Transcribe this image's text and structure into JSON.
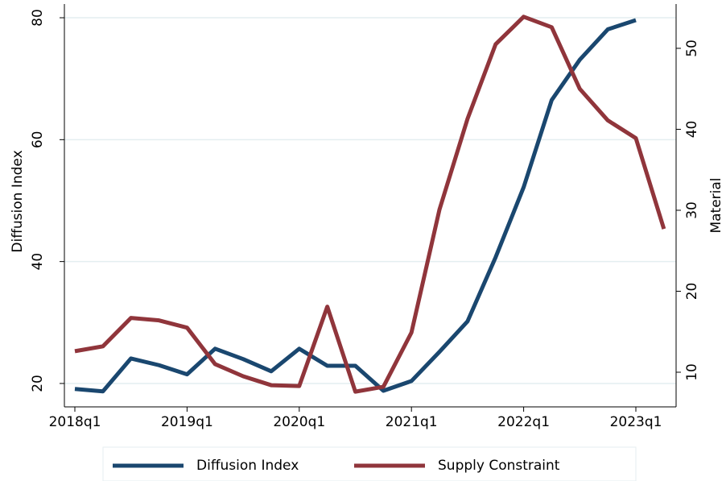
{
  "chart_data": {
    "type": "line",
    "categories": [
      "2018q1",
      null,
      null,
      null,
      "2019q1",
      null,
      null,
      null,
      "2020q1",
      null,
      null,
      null,
      "2021q1",
      null,
      null,
      null,
      "2022q1",
      null,
      null,
      null,
      "2023q1",
      null
    ],
    "y_label": "Diffusion Index",
    "y2_label": "Material",
    "ylim": [
      16.16,
      82.25
    ],
    "yticks": [
      20,
      40,
      60,
      80
    ],
    "y2lim": [
      5.72,
      55.47
    ],
    "y2ticks": [
      10,
      20,
      30,
      40,
      50
    ],
    "grid": true,
    "legend": "bottom",
    "series": [
      {
        "name": "Diffusion Index",
        "color": "#1a476f",
        "values": [
          19.1,
          18.7,
          24.1,
          23.0,
          21.5,
          25.7,
          24.0,
          22.0,
          25.7,
          22.9,
          22.9,
          18.8,
          20.4,
          25.2,
          30.2,
          40.7,
          52.2,
          66.5,
          73.1,
          78.1,
          79.6,
          null
        ]
      },
      {
        "name": "Supply Constraint",
        "color": "#90353b",
        "axis": "y2",
        "values": [
          12.6,
          13.2,
          16.7,
          16.4,
          15.5,
          11.0,
          9.5,
          8.4,
          8.3,
          18.1,
          7.6,
          8.2,
          14.9,
          30.1,
          41.3,
          50.5,
          53.9,
          52.6,
          45.0,
          41.1,
          38.9,
          27.7
        ]
      }
    ]
  }
}
